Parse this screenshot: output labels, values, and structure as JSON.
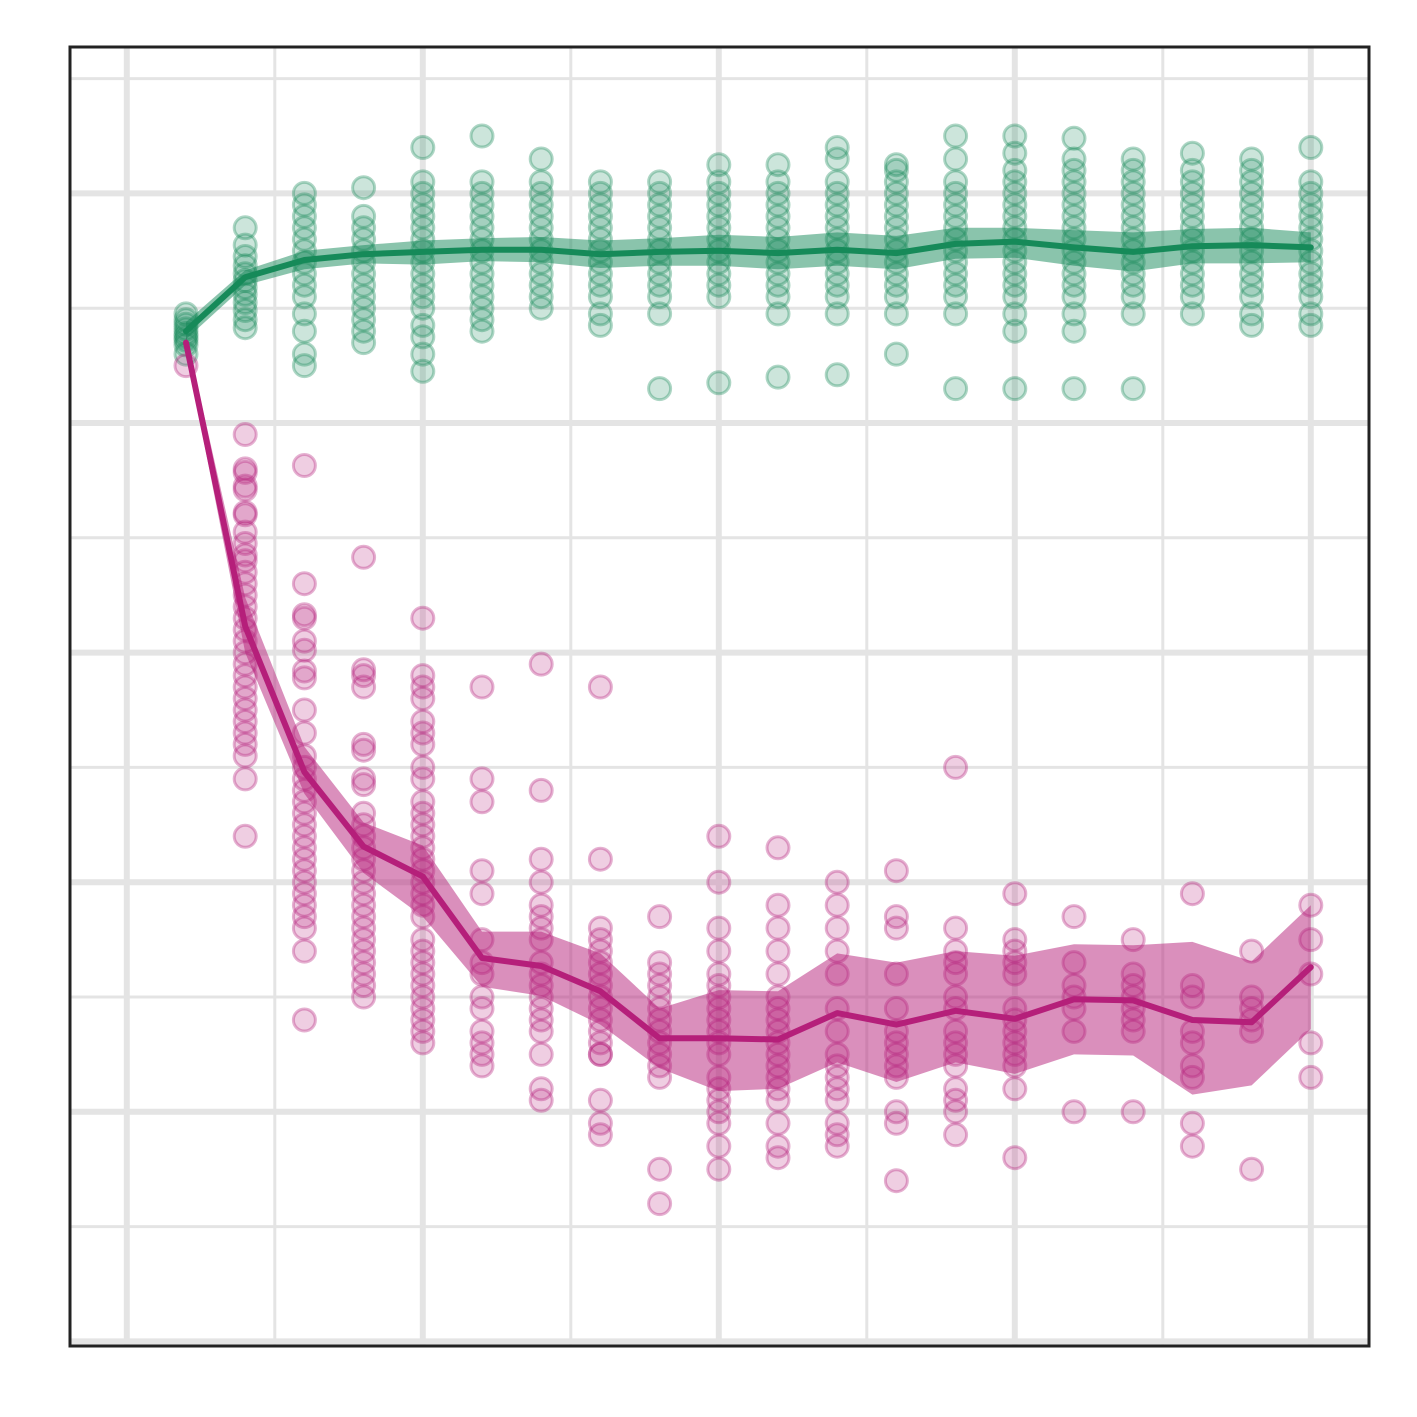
{
  "chart_data": {
    "type": "line",
    "title": "",
    "xlabel": "",
    "ylabel": "",
    "xlim": [
      -1,
      21
    ],
    "ylim": [
      0,
      1
    ],
    "grid": true,
    "legend": "none",
    "colors": {
      "series_a": "#168a59",
      "series_b": "#b51f7a",
      "grid": "#e4e4e4",
      "frame": "#222222"
    },
    "x": [
      0,
      1,
      2,
      3,
      4,
      5,
      6,
      7,
      8,
      9,
      10,
      11,
      12,
      13,
      14,
      15,
      16,
      17,
      18,
      19
    ],
    "series": [
      {
        "color": "#168a59",
        "mean": [
          0.83,
          0.877,
          0.892,
          0.897,
          0.899,
          0.901,
          0.901,
          0.897,
          0.899,
          0.9,
          0.898,
          0.901,
          0.898,
          0.906,
          0.908,
          0.903,
          0.899,
          0.904,
          0.905,
          0.903
        ],
        "ci_low": [
          0.823,
          0.87,
          0.884,
          0.889,
          0.888,
          0.891,
          0.89,
          0.885,
          0.887,
          0.887,
          0.884,
          0.887,
          0.884,
          0.893,
          0.894,
          0.887,
          0.882,
          0.889,
          0.889,
          0.89
        ],
        "ci_high": [
          0.838,
          0.883,
          0.9,
          0.905,
          0.909,
          0.911,
          0.912,
          0.909,
          0.911,
          0.914,
          0.912,
          0.916,
          0.913,
          0.92,
          0.92,
          0.918,
          0.916,
          0.919,
          0.92,
          0.916
        ],
        "points": [
          [
            0.84,
            0.836,
            0.832,
            0.828,
            0.825,
            0.822,
            0.818,
            0.845,
            0.81
          ],
          [
            0.92,
            0.905,
            0.895,
            0.887,
            0.88,
            0.874,
            0.868,
            0.862,
            0.855,
            0.848,
            0.84,
            0.833
          ],
          [
            0.95,
            0.94,
            0.93,
            0.92,
            0.91,
            0.9,
            0.89,
            0.88,
            0.87,
            0.86,
            0.845,
            0.83,
            0.81,
            0.8
          ],
          [
            0.955,
            0.93,
            0.92,
            0.91,
            0.9,
            0.89,
            0.88,
            0.87,
            0.86,
            0.85,
            0.84,
            0.83,
            0.82
          ],
          [
            0.99,
            0.96,
            0.95,
            0.94,
            0.93,
            0.92,
            0.91,
            0.9,
            0.89,
            0.88,
            0.87,
            0.86,
            0.85,
            0.835,
            0.825,
            0.81,
            0.795
          ],
          [
            1.0,
            0.96,
            0.95,
            0.94,
            0.93,
            0.92,
            0.91,
            0.9,
            0.89,
            0.88,
            0.87,
            0.86,
            0.85,
            0.84,
            0.83
          ],
          [
            0.98,
            0.96,
            0.95,
            0.94,
            0.93,
            0.92,
            0.91,
            0.9,
            0.89,
            0.88,
            0.87,
            0.86,
            0.85
          ],
          [
            0.96,
            0.95,
            0.94,
            0.93,
            0.92,
            0.91,
            0.9,
            0.89,
            0.88,
            0.87,
            0.86,
            0.845,
            0.835
          ],
          [
            0.96,
            0.95,
            0.94,
            0.93,
            0.92,
            0.91,
            0.9,
            0.89,
            0.88,
            0.87,
            0.86,
            0.845,
            0.78
          ],
          [
            0.975,
            0.96,
            0.95,
            0.94,
            0.93,
            0.92,
            0.91,
            0.9,
            0.89,
            0.88,
            0.87,
            0.86,
            0.785
          ],
          [
            0.975,
            0.96,
            0.95,
            0.94,
            0.93,
            0.92,
            0.91,
            0.9,
            0.89,
            0.88,
            0.87,
            0.86,
            0.845,
            0.79
          ],
          [
            0.99,
            0.98,
            0.96,
            0.95,
            0.94,
            0.93,
            0.92,
            0.91,
            0.9,
            0.89,
            0.88,
            0.87,
            0.86,
            0.845,
            0.792
          ],
          [
            0.975,
            0.97,
            0.96,
            0.95,
            0.94,
            0.93,
            0.92,
            0.91,
            0.9,
            0.89,
            0.88,
            0.87,
            0.86,
            0.845,
            0.81
          ],
          [
            1.0,
            0.98,
            0.96,
            0.95,
            0.94,
            0.93,
            0.92,
            0.91,
            0.9,
            0.89,
            0.88,
            0.87,
            0.86,
            0.845,
            0.78
          ],
          [
            1.0,
            0.985,
            0.97,
            0.96,
            0.95,
            0.94,
            0.93,
            0.92,
            0.91,
            0.9,
            0.89,
            0.88,
            0.87,
            0.86,
            0.845,
            0.83,
            0.78
          ],
          [
            0.998,
            0.98,
            0.97,
            0.96,
            0.95,
            0.94,
            0.93,
            0.92,
            0.91,
            0.9,
            0.89,
            0.88,
            0.87,
            0.86,
            0.845,
            0.83,
            0.78
          ],
          [
            0.98,
            0.97,
            0.96,
            0.95,
            0.94,
            0.93,
            0.92,
            0.91,
            0.9,
            0.89,
            0.88,
            0.87,
            0.86,
            0.845,
            0.78
          ],
          [
            0.985,
            0.97,
            0.96,
            0.95,
            0.94,
            0.93,
            0.92,
            0.91,
            0.9,
            0.89,
            0.88,
            0.87,
            0.86,
            0.845
          ],
          [
            0.98,
            0.97,
            0.96,
            0.95,
            0.94,
            0.93,
            0.92,
            0.91,
            0.9,
            0.89,
            0.88,
            0.87,
            0.86,
            0.845,
            0.835
          ],
          [
            0.99,
            0.96,
            0.95,
            0.94,
            0.93,
            0.92,
            0.91,
            0.9,
            0.89,
            0.88,
            0.87,
            0.86,
            0.845,
            0.835
          ]
        ]
      },
      {
        "color": "#b51f7a",
        "mean": [
          0.82,
          0.573,
          0.446,
          0.381,
          0.355,
          0.284,
          0.277,
          0.255,
          0.214,
          0.214,
          0.213,
          0.236,
          0.226,
          0.238,
          0.231,
          0.248,
          0.247,
          0.23,
          0.228,
          0.276
        ],
        "ci_low": [
          0.813,
          0.55,
          0.427,
          0.358,
          0.32,
          0.259,
          0.251,
          0.226,
          0.188,
          0.168,
          0.17,
          0.193,
          0.176,
          0.193,
          0.183,
          0.2,
          0.199,
          0.165,
          0.173,
          0.222
        ],
        "ci_high": [
          0.827,
          0.598,
          0.468,
          0.402,
          0.382,
          0.307,
          0.307,
          0.288,
          0.24,
          0.256,
          0.255,
          0.288,
          0.28,
          0.29,
          0.286,
          0.296,
          0.295,
          0.298,
          0.281,
          0.33
        ],
        "points": [
          [
            0.8
          ],
          [
            0.74,
            0.71,
            0.707,
            0.695,
            0.692,
            0.672,
            0.67,
            0.655,
            0.645,
            0.635,
            0.63,
            0.62,
            0.61,
            0.6,
            0.59,
            0.58,
            0.57,
            0.56,
            0.55,
            0.54,
            0.53,
            0.52,
            0.51,
            0.5,
            0.49,
            0.48,
            0.47,
            0.46,
            0.44,
            0.39
          ],
          [
            0.713,
            0.61,
            0.583,
            0.58,
            0.56,
            0.552,
            0.534,
            0.528,
            0.5,
            0.48,
            0.46,
            0.45,
            0.44,
            0.43,
            0.42,
            0.41,
            0.4,
            0.39,
            0.38,
            0.37,
            0.36,
            0.35,
            0.34,
            0.33,
            0.32,
            0.31,
            0.29,
            0.23
          ],
          [
            0.633,
            0.535,
            0.53,
            0.52,
            0.47,
            0.465,
            0.44,
            0.435,
            0.41,
            0.4,
            0.39,
            0.38,
            0.37,
            0.36,
            0.35,
            0.34,
            0.33,
            0.32,
            0.31,
            0.3,
            0.29,
            0.28,
            0.27,
            0.26,
            0.25
          ],
          [
            0.58,
            0.53,
            0.52,
            0.51,
            0.49,
            0.48,
            0.47,
            0.45,
            0.44,
            0.42,
            0.41,
            0.4,
            0.39,
            0.38,
            0.37,
            0.36,
            0.35,
            0.34,
            0.33,
            0.32,
            0.3,
            0.29,
            0.28,
            0.27,
            0.26,
            0.25,
            0.24,
            0.23,
            0.22,
            0.21
          ],
          [
            0.52,
            0.44,
            0.42,
            0.36,
            0.34,
            0.3,
            0.28,
            0.27,
            0.25,
            0.24,
            0.22,
            0.21,
            0.2,
            0.19
          ],
          [
            0.54,
            0.43,
            0.37,
            0.35,
            0.33,
            0.32,
            0.31,
            0.3,
            0.28,
            0.27,
            0.26,
            0.25,
            0.24,
            0.23,
            0.22,
            0.2,
            0.17,
            0.16
          ],
          [
            0.52,
            0.37,
            0.31,
            0.3,
            0.29,
            0.28,
            0.27,
            0.26,
            0.25,
            0.24,
            0.23,
            0.22,
            0.21,
            0.2,
            0.2,
            0.16,
            0.14,
            0.13
          ],
          [
            0.32,
            0.28,
            0.27,
            0.26,
            0.25,
            0.24,
            0.23,
            0.22,
            0.21,
            0.2,
            0.19,
            0.18,
            0.1,
            0.07
          ],
          [
            0.39,
            0.35,
            0.31,
            0.29,
            0.27,
            0.26,
            0.25,
            0.24,
            0.23,
            0.22,
            0.21,
            0.2,
            0.18,
            0.17,
            0.16,
            0.15,
            0.14,
            0.12,
            0.1
          ],
          [
            0.38,
            0.33,
            0.31,
            0.29,
            0.27,
            0.25,
            0.24,
            0.23,
            0.22,
            0.21,
            0.2,
            0.19,
            0.18,
            0.17,
            0.16,
            0.14,
            0.12,
            0.11
          ],
          [
            0.35,
            0.33,
            0.31,
            0.29,
            0.27,
            0.24,
            0.22,
            0.2,
            0.19,
            0.18,
            0.17,
            0.16,
            0.14,
            0.13,
            0.12
          ],
          [
            0.36,
            0.32,
            0.31,
            0.27,
            0.24,
            0.22,
            0.21,
            0.2,
            0.19,
            0.18,
            0.15,
            0.14,
            0.09
          ],
          [
            0.45,
            0.31,
            0.29,
            0.28,
            0.27,
            0.25,
            0.24,
            0.22,
            0.21,
            0.2,
            0.19,
            0.17,
            0.16,
            0.15,
            0.13
          ],
          [
            0.34,
            0.3,
            0.29,
            0.28,
            0.27,
            0.24,
            0.23,
            0.22,
            0.21,
            0.2,
            0.19,
            0.17,
            0.11
          ],
          [
            0.32,
            0.28,
            0.26,
            0.25,
            0.24,
            0.22,
            0.15
          ],
          [
            0.3,
            0.27,
            0.26,
            0.25,
            0.24,
            0.23,
            0.22,
            0.15
          ],
          [
            0.34,
            0.26,
            0.25,
            0.22,
            0.21,
            0.19,
            0.18,
            0.14,
            0.12
          ],
          [
            0.29,
            0.25,
            0.24,
            0.23,
            0.22,
            0.1
          ],
          [
            0.33,
            0.3,
            0.27,
            0.21,
            0.18
          ]
        ]
      }
    ]
  }
}
